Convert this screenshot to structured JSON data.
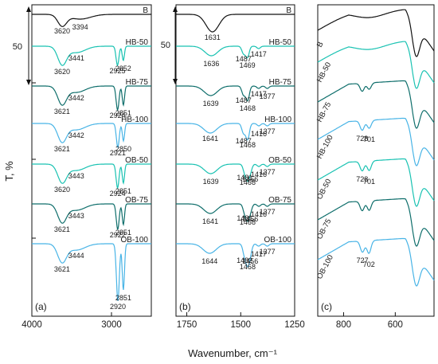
{
  "figure": {
    "ylabel": "T, %",
    "xlabel": "Wavenumber, cm⁻¹",
    "scale_bar_label": "50"
  },
  "colors": {
    "B": "#111111",
    "HB-50": "#19c2b2",
    "HB-75": "#0e6e6b",
    "HB-100": "#48b4e6",
    "OB-50": "#19c2b2",
    "OB-75": "#0e6e6b",
    "OB-100": "#48b4e6",
    "axis": "#111111"
  },
  "chart_data": [
    {
      "type": "line",
      "panel_label": "(a)",
      "xlim": [
        4000,
        2500
      ],
      "xticks": [
        4000,
        3000
      ],
      "series_order": [
        "B",
        "HB-50",
        "HB-75",
        "HB-100",
        "OB-50",
        "OB-75",
        "OB-100"
      ],
      "series": [
        {
          "name": "B",
          "bands": [
            {
              "x": 3620,
              "depth": 14,
              "width": 55
            },
            {
              "x": 3394,
              "depth": 6,
              "width": 130
            }
          ]
        },
        {
          "name": "HB-50",
          "bands": [
            {
              "x": 3620,
              "depth": 22,
              "width": 55
            },
            {
              "x": 3441,
              "depth": 8,
              "width": 110
            },
            {
              "x": 2925,
              "depth": 24,
              "width": 18
            },
            {
              "x": 2852,
              "depth": 18,
              "width": 14
            }
          ]
        },
        {
          "name": "HB-75",
          "bands": [
            {
              "x": 3621,
              "depth": 22,
              "width": 55
            },
            {
              "x": 3442,
              "depth": 8,
              "width": 110
            },
            {
              "x": 2924,
              "depth": 30,
              "width": 18
            },
            {
              "x": 2851,
              "depth": 24,
              "width": 14
            }
          ]
        },
        {
          "name": "HB-100",
          "bands": [
            {
              "x": 3621,
              "depth": 22,
              "width": 55
            },
            {
              "x": 3442,
              "depth": 8,
              "width": 110
            },
            {
              "x": 2921,
              "depth": 30,
              "width": 18
            },
            {
              "x": 2850,
              "depth": 22,
              "width": 14
            }
          ]
        },
        {
          "name": "OB-50",
          "bands": [
            {
              "x": 3620,
              "depth": 22,
              "width": 55
            },
            {
              "x": 3443,
              "depth": 8,
              "width": 110
            },
            {
              "x": 2924,
              "depth": 30,
              "width": 18
            },
            {
              "x": 2851,
              "depth": 24,
              "width": 14
            }
          ]
        },
        {
          "name": "OB-75",
          "bands": [
            {
              "x": 3621,
              "depth": 22,
              "width": 55
            },
            {
              "x": 3443,
              "depth": 8,
              "width": 110
            },
            {
              "x": 2922,
              "depth": 32,
              "width": 18
            },
            {
              "x": 2851,
              "depth": 26,
              "width": 14
            }
          ]
        },
        {
          "name": "OB-100",
          "bands": [
            {
              "x": 3621,
              "depth": 22,
              "width": 55
            },
            {
              "x": 3444,
              "depth": 8,
              "width": 110
            },
            {
              "x": 2920,
              "depth": 72,
              "width": 18
            },
            {
              "x": 2851,
              "depth": 58,
              "width": 14
            }
          ]
        }
      ],
      "annotations": [
        {
          "series": "B",
          "text": "3620",
          "x": 3620
        },
        {
          "series": "B",
          "text": "3394",
          "x": 3394
        },
        {
          "series": "HB-50",
          "text": "3441",
          "x": 3441
        },
        {
          "series": "HB-50",
          "text": "3620",
          "x": 3620
        },
        {
          "series": "HB-50",
          "text": "2925",
          "x": 2925
        },
        {
          "series": "HB-50",
          "text": "2852",
          "x": 2852
        },
        {
          "series": "HB-75",
          "text": "3442",
          "x": 3442
        },
        {
          "series": "HB-75",
          "text": "3621",
          "x": 3621
        },
        {
          "series": "HB-75",
          "text": "2924",
          "x": 2924
        },
        {
          "series": "HB-75",
          "text": "2851",
          "x": 2851
        },
        {
          "series": "HB-100",
          "text": "3442",
          "x": 3442
        },
        {
          "series": "HB-100",
          "text": "3621",
          "x": 3621
        },
        {
          "series": "HB-100",
          "text": "2921",
          "x": 2921
        },
        {
          "series": "HB-100",
          "text": "2850",
          "x": 2850
        },
        {
          "series": "OB-50",
          "text": "3443",
          "x": 3443
        },
        {
          "series": "OB-50",
          "text": "3620",
          "x": 3620
        },
        {
          "series": "OB-50",
          "text": "2924",
          "x": 2924
        },
        {
          "series": "OB-50",
          "text": "2851",
          "x": 2851
        },
        {
          "series": "OB-75",
          "text": "3443",
          "x": 3443
        },
        {
          "series": "OB-75",
          "text": "3621",
          "x": 3621
        },
        {
          "series": "OB-75",
          "text": "2922",
          "x": 2922
        },
        {
          "series": "OB-75",
          "text": "2851",
          "x": 2851
        },
        {
          "series": "OB-100",
          "text": "3444",
          "x": 3444
        },
        {
          "series": "OB-100",
          "text": "3621",
          "x": 3621
        },
        {
          "series": "OB-100",
          "text": "2920",
          "x": 2920
        },
        {
          "series": "OB-100",
          "text": "2851",
          "x": 2851
        }
      ]
    },
    {
      "type": "line",
      "panel_label": "(b)",
      "xlim": [
        1800,
        1250
      ],
      "xticks": [
        1750,
        1500,
        1250
      ],
      "series_order": [
        "B",
        "HB-50",
        "HB-75",
        "HB-100",
        "OB-50",
        "OB-75",
        "OB-100"
      ],
      "series": [
        {
          "name": "B",
          "bands": [
            {
              "x": 1631,
              "depth": 22,
              "width": 30
            }
          ]
        },
        {
          "name": "HB-50",
          "bands": [
            {
              "x": 1636,
              "depth": 12,
              "width": 30
            },
            {
              "x": 1487,
              "depth": 9,
              "width": 8
            },
            {
              "x": 1469,
              "depth": 14,
              "width": 8
            },
            {
              "x": 1417,
              "depth": 3,
              "width": 8
            }
          ]
        },
        {
          "name": "HB-75",
          "bands": [
            {
              "x": 1639,
              "depth": 12,
              "width": 30
            },
            {
              "x": 1487,
              "depth": 11,
              "width": 8
            },
            {
              "x": 1468,
              "depth": 18,
              "width": 8
            },
            {
              "x": 1417,
              "depth": 3,
              "width": 8
            },
            {
              "x": 1377,
              "depth": 3,
              "width": 8
            }
          ]
        },
        {
          "name": "HB-100",
          "bands": [
            {
              "x": 1641,
              "depth": 12,
              "width": 30
            },
            {
              "x": 1487,
              "depth": 12,
              "width": 8
            },
            {
              "x": 1468,
              "depth": 20,
              "width": 8
            },
            {
              "x": 1416,
              "depth": 3,
              "width": 8
            },
            {
              "x": 1377,
              "depth": 3,
              "width": 8
            }
          ]
        },
        {
          "name": "OB-50",
          "bands": [
            {
              "x": 1639,
              "depth": 12,
              "width": 30
            },
            {
              "x": 1481,
              "depth": 10,
              "width": 8
            },
            {
              "x": 1468,
              "depth": 16,
              "width": 8
            },
            {
              "x": 1456,
              "depth": 9,
              "width": 8
            },
            {
              "x": 1416,
              "depth": 3,
              "width": 8
            },
            {
              "x": 1377,
              "depth": 3,
              "width": 8
            }
          ]
        },
        {
          "name": "OB-75",
          "bands": [
            {
              "x": 1641,
              "depth": 12,
              "width": 30
            },
            {
              "x": 1481,
              "depth": 11,
              "width": 8
            },
            {
              "x": 1468,
              "depth": 16,
              "width": 8
            },
            {
              "x": 1456,
              "depth": 9,
              "width": 8
            },
            {
              "x": 1416,
              "depth": 3,
              "width": 8
            },
            {
              "x": 1377,
              "depth": 3,
              "width": 8
            }
          ]
        },
        {
          "name": "OB-100",
          "bands": [
            {
              "x": 1644,
              "depth": 12,
              "width": 30
            },
            {
              "x": 1482,
              "depth": 14,
              "width": 8
            },
            {
              "x": 1468,
              "depth": 22,
              "width": 8
            },
            {
              "x": 1456,
              "depth": 12,
              "width": 8
            },
            {
              "x": 1417,
              "depth": 3,
              "width": 8
            },
            {
              "x": 1377,
              "depth": 3,
              "width": 8
            }
          ]
        }
      ],
      "annotations": [
        {
          "series": "B",
          "text": "1631",
          "x": 1631
        },
        {
          "series": "HB-50",
          "text": "1636",
          "x": 1636
        },
        {
          "series": "HB-50",
          "text": "1487",
          "x": 1487
        },
        {
          "series": "HB-50",
          "text": "1469",
          "x": 1469
        },
        {
          "series": "HB-50",
          "text": "1417",
          "x": 1417
        },
        {
          "series": "HB-75",
          "text": "1639",
          "x": 1639
        },
        {
          "series": "HB-75",
          "text": "1487",
          "x": 1487
        },
        {
          "series": "HB-75",
          "text": "1468",
          "x": 1468
        },
        {
          "series": "HB-75",
          "text": "1417",
          "x": 1417
        },
        {
          "series": "HB-75",
          "text": "1377",
          "x": 1377
        },
        {
          "series": "HB-100",
          "text": "1641",
          "x": 1641
        },
        {
          "series": "HB-100",
          "text": "1487",
          "x": 1487
        },
        {
          "series": "HB-100",
          "text": "1468",
          "x": 1468
        },
        {
          "series": "HB-100",
          "text": "1416",
          "x": 1416
        },
        {
          "series": "HB-100",
          "text": "1377",
          "x": 1377
        },
        {
          "series": "OB-50",
          "text": "1639",
          "x": 1639
        },
        {
          "series": "OB-50",
          "text": "1481",
          "x": 1481
        },
        {
          "series": "OB-50",
          "text": "1456",
          "x": 1456
        },
        {
          "series": "OB-50",
          "text": "1468",
          "x": 1468
        },
        {
          "series": "OB-50",
          "text": "1416",
          "x": 1416
        },
        {
          "series": "OB-50",
          "text": "1377",
          "x": 1377
        },
        {
          "series": "OB-75",
          "text": "1641",
          "x": 1641
        },
        {
          "series": "OB-75",
          "text": "1481",
          "x": 1481
        },
        {
          "series": "OB-75",
          "text": "1456",
          "x": 1456
        },
        {
          "series": "OB-75",
          "text": "1468",
          "x": 1468
        },
        {
          "series": "OB-75",
          "text": "1416",
          "x": 1416
        },
        {
          "series": "OB-75",
          "text": "1377",
          "x": 1377
        },
        {
          "series": "OB-100",
          "text": "1644",
          "x": 1644
        },
        {
          "series": "OB-100",
          "text": "1482",
          "x": 1482
        },
        {
          "series": "OB-100",
          "text": "1456",
          "x": 1456
        },
        {
          "series": "OB-100",
          "text": "1468",
          "x": 1468
        },
        {
          "series": "OB-100",
          "text": "1417",
          "x": 1417
        },
        {
          "series": "OB-100",
          "text": "1377",
          "x": 1377
        }
      ]
    },
    {
      "type": "line",
      "panel_label": "(c)",
      "xlim": [
        900,
        450
      ],
      "xticks": [
        800,
        600
      ],
      "series_order": [
        "B",
        "HB-50",
        "HB-75",
        "HB-100",
        "OB-50",
        "OB-75",
        "OB-100"
      ],
      "series": [
        {
          "name": "B",
          "bands": [
            {
              "x": 700,
              "depth": 8,
              "width": 60
            },
            {
              "x": 520,
              "depth": 40,
              "width": 14
            }
          ]
        },
        {
          "name": "HB-50",
          "bands": [
            {
              "x": 700,
              "depth": 8,
              "width": 60
            },
            {
              "x": 520,
              "depth": 40,
              "width": 14
            }
          ]
        },
        {
          "name": "HB-75",
          "bands": [
            {
              "x": 728,
              "depth": 10,
              "width": 8
            },
            {
              "x": 701,
              "depth": 8,
              "width": 8
            },
            {
              "x": 520,
              "depth": 40,
              "width": 14
            }
          ]
        },
        {
          "name": "HB-100",
          "bands": [
            {
              "x": 728,
              "depth": 12,
              "width": 8
            },
            {
              "x": 701,
              "depth": 10,
              "width": 8
            },
            {
              "x": 520,
              "depth": 40,
              "width": 14
            }
          ]
        },
        {
          "name": "OB-50",
          "bands": [
            {
              "x": 728,
              "depth": 12,
              "width": 8
            },
            {
              "x": 701,
              "depth": 12,
              "width": 8
            },
            {
              "x": 520,
              "depth": 40,
              "width": 14
            }
          ]
        },
        {
          "name": "OB-75",
          "bands": [
            {
              "x": 728,
              "depth": 12,
              "width": 8
            },
            {
              "x": 701,
              "depth": 12,
              "width": 8
            },
            {
              "x": 520,
              "depth": 40,
              "width": 14
            }
          ]
        },
        {
          "name": "OB-100",
          "bands": [
            {
              "x": 727,
              "depth": 14,
              "width": 8
            },
            {
              "x": 702,
              "depth": 16,
              "width": 8
            },
            {
              "x": 520,
              "depth": 40,
              "width": 14
            }
          ]
        }
      ],
      "annotations": [
        {
          "series": "HB-100",
          "text": "728",
          "x": 728
        },
        {
          "series": "HB-100",
          "text": "701",
          "x": 701
        },
        {
          "series": "OB-50",
          "text": "728",
          "x": 728
        },
        {
          "series": "OB-50",
          "text": "701",
          "x": 701
        },
        {
          "series": "OB-100",
          "text": "727",
          "x": 727
        },
        {
          "series": "OB-100",
          "text": "702",
          "x": 702
        }
      ]
    }
  ]
}
